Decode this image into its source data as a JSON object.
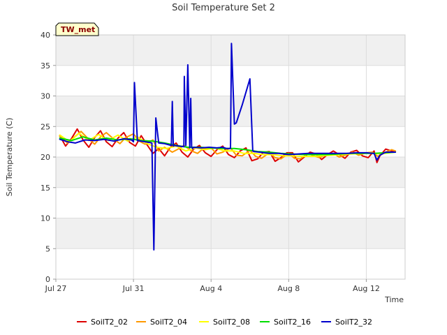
{
  "chart_data": {
    "type": "line",
    "title": "Soil Temperature Set 2",
    "xlabel": "Time",
    "ylabel": "Soil Temperature (C)",
    "badge": "TW_met",
    "xlim": [
      0,
      18
    ],
    "ylim": [
      0,
      40
    ],
    "x_ticks": [
      {
        "value": 0,
        "label": "Jul 27"
      },
      {
        "value": 4,
        "label": "Jul 31"
      },
      {
        "value": 8,
        "label": "Aug 4"
      },
      {
        "value": 12,
        "label": "Aug 8"
      },
      {
        "value": 16,
        "label": "Aug 12"
      }
    ],
    "y_ticks": [
      0,
      5,
      10,
      15,
      20,
      25,
      30,
      35,
      40
    ],
    "colors": {
      "band": "#f0f0f0",
      "grid": "#dddddd",
      "badge_fill": "#ffffcc",
      "badge_border": "#000000"
    },
    "series": [
      {
        "name": "SoilT2_02",
        "color": "#dd0000",
        "width": 2,
        "x": [
          0.2,
          0.5,
          0.8,
          1.1,
          1.4,
          1.7,
          2.0,
          2.3,
          2.6,
          2.9,
          3.2,
          3.5,
          3.8,
          4.1,
          4.4,
          4.7,
          5.0,
          5.3,
          5.6,
          5.9,
          6.2,
          6.5,
          6.8,
          7.1,
          7.4,
          7.7,
          8.0,
          8.3,
          8.6,
          8.9,
          9.2,
          9.5,
          9.8,
          10.1,
          10.4,
          10.7,
          11.0,
          11.3,
          11.6,
          11.9,
          12.2,
          12.5,
          12.8,
          13.1,
          13.4,
          13.7,
          14.0,
          14.3,
          14.6,
          14.9,
          15.2,
          15.5,
          15.8,
          16.1,
          16.4,
          16.55,
          16.7,
          17.0,
          17.3,
          17.5
        ],
        "y": [
          23.5,
          21.8,
          23.0,
          24.6,
          22.8,
          21.6,
          23.2,
          24.3,
          22.5,
          21.7,
          23.1,
          24.0,
          22.4,
          21.8,
          23.5,
          22.0,
          20.6,
          21.4,
          20.2,
          21.6,
          22.3,
          20.8,
          20.0,
          21.3,
          21.9,
          20.7,
          20.1,
          21.2,
          21.8,
          20.4,
          19.9,
          21.0,
          21.5,
          19.4,
          19.7,
          20.8,
          20.9,
          19.3,
          19.9,
          20.7,
          20.7,
          19.2,
          20.0,
          20.8,
          20.5,
          19.6,
          20.4,
          21.0,
          20.4,
          19.8,
          20.8,
          21.1,
          20.2,
          19.9,
          21.0,
          19.1,
          20.2,
          21.3,
          21.0,
          20.9
        ]
      },
      {
        "name": "SoilT2_04",
        "color": "#ff9900",
        "width": 2,
        "x": [
          0.2,
          0.6,
          1.0,
          1.3,
          1.6,
          2.0,
          2.3,
          2.6,
          3.0,
          3.3,
          3.6,
          4.0,
          4.3,
          4.6,
          5.0,
          5.3,
          5.6,
          6.0,
          6.3,
          6.6,
          7.0,
          7.3,
          7.6,
          8.0,
          8.3,
          8.6,
          9.0,
          9.3,
          9.6,
          10.0,
          10.3,
          10.6,
          11.0,
          11.3,
          11.6,
          12.0,
          12.3,
          12.6,
          13.0,
          13.3,
          13.6,
          14.0,
          14.3,
          14.6,
          15.0,
          15.3,
          15.6,
          16.0,
          16.3,
          16.6,
          17.0,
          17.3,
          17.5
        ],
        "y": [
          23.4,
          22.3,
          23.4,
          24.2,
          23.2,
          22.1,
          23.3,
          24.0,
          22.9,
          22.2,
          23.2,
          23.8,
          22.6,
          22.1,
          22.8,
          21.0,
          21.6,
          20.8,
          21.3,
          21.9,
          21.0,
          20.6,
          21.4,
          21.5,
          20.5,
          20.8,
          21.5,
          20.3,
          20.2,
          21.1,
          20.1,
          19.8,
          20.7,
          19.9,
          19.7,
          20.6,
          19.8,
          19.7,
          20.6,
          20.2,
          19.9,
          20.5,
          20.6,
          20.0,
          20.4,
          20.8,
          20.3,
          20.7,
          20.8,
          20.1,
          20.8,
          21.2,
          21.0
        ]
      },
      {
        "name": "SoilT2_08",
        "color": "#ffff00",
        "width": 2,
        "x": [
          0.2,
          0.7,
          1.2,
          1.7,
          2.2,
          2.7,
          3.2,
          3.7,
          4.2,
          4.7,
          5.2,
          5.7,
          6.2,
          6.7,
          7.2,
          7.7,
          8.2,
          8.7,
          9.2,
          9.7,
          10.2,
          10.7,
          11.2,
          11.7,
          12.2,
          12.7,
          13.2,
          13.7,
          14.2,
          14.7,
          15.2,
          15.7,
          16.2,
          16.7,
          17.2,
          17.5
        ],
        "y": [
          23.6,
          22.5,
          23.9,
          22.7,
          23.7,
          22.7,
          23.6,
          22.6,
          23.3,
          22.2,
          21.6,
          21.4,
          21.8,
          21.0,
          21.5,
          21.2,
          21.5,
          21.0,
          21.0,
          20.6,
          20.6,
          20.4,
          20.4,
          20.2,
          20.2,
          20.1,
          20.1,
          20.2,
          20.3,
          20.4,
          20.5,
          20.6,
          20.7,
          20.5,
          20.7,
          20.8
        ]
      },
      {
        "name": "SoilT2_16",
        "color": "#00dd00",
        "width": 2,
        "x": [
          0.2,
          0.8,
          1.4,
          2.0,
          2.6,
          3.2,
          3.8,
          4.4,
          5.0,
          5.6,
          6.2,
          6.8,
          7.4,
          8.0,
          8.6,
          9.2,
          9.8,
          10.4,
          11.0,
          11.6,
          12.2,
          12.8,
          13.4,
          14.0,
          14.6,
          15.2,
          15.8,
          16.4,
          17.0,
          17.5
        ],
        "y": [
          23.1,
          22.7,
          23.3,
          22.8,
          23.1,
          22.8,
          23.0,
          22.7,
          22.6,
          22.3,
          21.9,
          21.6,
          21.6,
          21.5,
          21.4,
          21.4,
          21.2,
          20.9,
          20.8,
          20.6,
          20.5,
          20.4,
          20.4,
          20.4,
          20.5,
          20.6,
          20.6,
          20.6,
          20.7,
          20.8
        ]
      },
      {
        "name": "SoilT2_32",
        "color": "#0000cc",
        "width": 2,
        "x": [
          0.2,
          0.6,
          1.0,
          1.5,
          2.0,
          2.5,
          3.0,
          3.5,
          3.9,
          4.0,
          4.05,
          4.2,
          4.4,
          4.8,
          4.95,
          5.05,
          5.15,
          5.3,
          5.6,
          5.95,
          6.0,
          6.05,
          6.1,
          6.3,
          6.6,
          6.62,
          6.7,
          6.8,
          6.9,
          6.95,
          7.0,
          7.05,
          7.1,
          7.5,
          7.9,
          8.3,
          8.6,
          8.8,
          9.0,
          9.05,
          9.2,
          9.3,
          9.6,
          10.0,
          10.15,
          10.2,
          10.5,
          11.0,
          11.5,
          12.0,
          12.5,
          13.0,
          13.5,
          14.0,
          14.5,
          15.0,
          15.5,
          16.0,
          16.4,
          16.55,
          16.7,
          17.0,
          17.5
        ],
        "y": [
          22.9,
          22.5,
          22.3,
          22.8,
          22.7,
          22.9,
          22.6,
          23.0,
          22.8,
          22.5,
          32.2,
          22.7,
          22.6,
          22.4,
          22.3,
          4.8,
          26.4,
          22.3,
          22.2,
          21.9,
          29.1,
          21.8,
          21.9,
          21.8,
          21.7,
          33.2,
          21.9,
          35.1,
          21.5,
          29.6,
          21.6,
          21.4,
          21.6,
          21.5,
          21.6,
          21.5,
          21.6,
          21.4,
          21.4,
          38.6,
          25.4,
          25.6,
          28.5,
          32.8,
          21.0,
          20.9,
          20.8,
          20.6,
          20.6,
          20.4,
          20.5,
          20.6,
          20.6,
          20.6,
          20.6,
          20.6,
          20.7,
          20.7,
          20.6,
          19.5,
          20.3,
          20.8,
          20.8
        ]
      }
    ]
  }
}
